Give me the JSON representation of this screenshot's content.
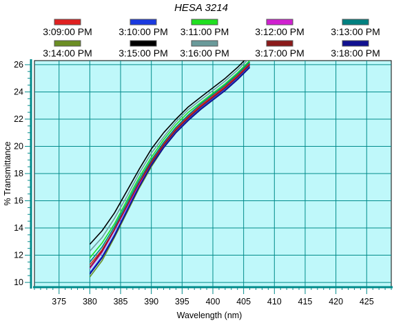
{
  "chart_data": {
    "type": "line",
    "title": "HESA 3214",
    "xlabel": "Wavelength (nm)",
    "ylabel": "% Transmittance",
    "xlim": [
      371,
      429
    ],
    "ylim": [
      9.7,
      26.3
    ],
    "x_ticks": [
      375,
      380,
      385,
      390,
      395,
      400,
      405,
      410,
      415,
      420,
      425
    ],
    "y_ticks": [
      10,
      12,
      14,
      16,
      18,
      20,
      22,
      24,
      26
    ],
    "grid": true,
    "plot_background": "#bff8fa",
    "legend_position": "top",
    "x": [
      380,
      382,
      384,
      386,
      388,
      390,
      392,
      394,
      396,
      398,
      400,
      402,
      404,
      406
    ],
    "series": [
      {
        "name": "3:09:00 PM",
        "color": "#e02020",
        "values": [
          11.3,
          12.4,
          13.9,
          15.6,
          17.3,
          18.9,
          20.2,
          21.3,
          22.2,
          23.0,
          23.7,
          24.4,
          25.2,
          26.1
        ]
      },
      {
        "name": "3:10:00 PM",
        "color": "#1a3ae0",
        "values": [
          10.7,
          11.9,
          13.5,
          15.3,
          17.1,
          18.7,
          20.0,
          21.1,
          22.0,
          22.8,
          23.5,
          24.2,
          25.0,
          25.9
        ]
      },
      {
        "name": "3:11:00 PM",
        "color": "#20e020",
        "values": [
          11.8,
          12.9,
          14.3,
          16.0,
          17.7,
          19.2,
          20.5,
          21.6,
          22.5,
          23.2,
          23.9,
          24.6,
          25.4,
          26.3
        ]
      },
      {
        "name": "3:12:00 PM",
        "color": "#d020d0",
        "values": [
          11.0,
          12.2,
          13.8,
          15.5,
          17.2,
          18.8,
          20.1,
          21.2,
          22.1,
          22.9,
          23.6,
          24.3,
          25.1,
          26.0
        ]
      },
      {
        "name": "3:13:00 PM",
        "color": "#008080",
        "values": [
          11.5,
          12.6,
          14.1,
          15.8,
          17.5,
          19.0,
          20.3,
          21.4,
          22.3,
          23.1,
          23.8,
          24.5,
          25.3,
          26.2
        ]
      },
      {
        "name": "3:14:00 PM",
        "color": "#6b8e23",
        "values": [
          10.4,
          11.6,
          13.3,
          15.1,
          16.9,
          18.5,
          19.9,
          21.0,
          21.9,
          22.7,
          23.4,
          24.1,
          24.9,
          25.8
        ]
      },
      {
        "name": "3:15:00 PM",
        "color": "#000000",
        "values": [
          12.8,
          13.8,
          15.1,
          16.7,
          18.3,
          19.8,
          21.0,
          22.0,
          22.9,
          23.6,
          24.3,
          25.0,
          25.8,
          26.7
        ]
      },
      {
        "name": "3:16:00 PM",
        "color": "#6a9a9a",
        "values": [
          12.3,
          13.3,
          14.7,
          16.3,
          18.0,
          19.5,
          20.7,
          21.8,
          22.7,
          23.4,
          24.1,
          24.8,
          25.6,
          26.5
        ]
      },
      {
        "name": "3:17:00 PM",
        "color": "#8b1a1a",
        "values": [
          11.1,
          12.3,
          13.9,
          15.6,
          17.3,
          18.8,
          20.1,
          21.2,
          22.1,
          22.9,
          23.6,
          24.3,
          25.1,
          26.0
        ]
      },
      {
        "name": "3:18:00 PM",
        "color": "#101090",
        "values": [
          10.6,
          11.8,
          13.4,
          15.2,
          17.0,
          18.6,
          19.9,
          21.0,
          21.9,
          22.7,
          23.4,
          24.1,
          24.9,
          25.8
        ]
      }
    ]
  }
}
